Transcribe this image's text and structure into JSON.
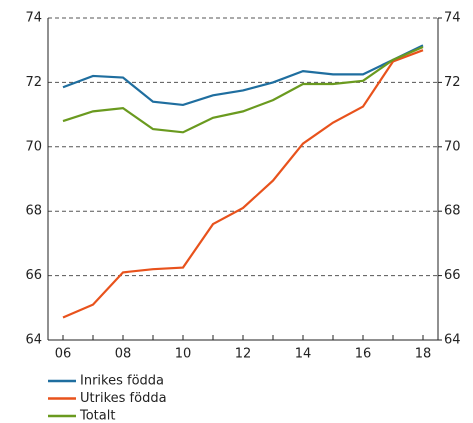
{
  "chart_data": {
    "type": "line",
    "categories": [
      "06",
      null,
      "08",
      null,
      "10",
      null,
      "12",
      null,
      "14",
      null,
      "16",
      null,
      "18"
    ],
    "series": [
      {
        "name": "Inrikes födda",
        "color": "#1f6e9f",
        "values": [
          71.85,
          72.2,
          72.15,
          71.4,
          71.3,
          71.6,
          71.75,
          72.0,
          72.35,
          72.25,
          72.25,
          72.7,
          73.15
        ]
      },
      {
        "name": "Utrikes födda",
        "color": "#e8521c",
        "values": [
          64.7,
          65.1,
          66.1,
          66.2,
          66.25,
          67.6,
          68.1,
          68.95,
          70.1,
          70.75,
          71.25,
          72.65,
          73.0
        ]
      },
      {
        "name": "Totalt",
        "color": "#6a9a1f",
        "values": [
          70.8,
          71.1,
          71.2,
          70.55,
          70.45,
          70.9,
          71.1,
          71.45,
          71.95,
          71.95,
          72.05,
          72.7,
          73.1
        ]
      }
    ],
    "ylim": [
      64,
      74
    ],
    "yticks": [
      64,
      66,
      68,
      70,
      72,
      74
    ],
    "y2lim": [
      64,
      74
    ],
    "y2ticks": [
      64,
      66,
      68,
      70,
      72,
      74
    ],
    "grid": true,
    "legend": "bottom"
  }
}
